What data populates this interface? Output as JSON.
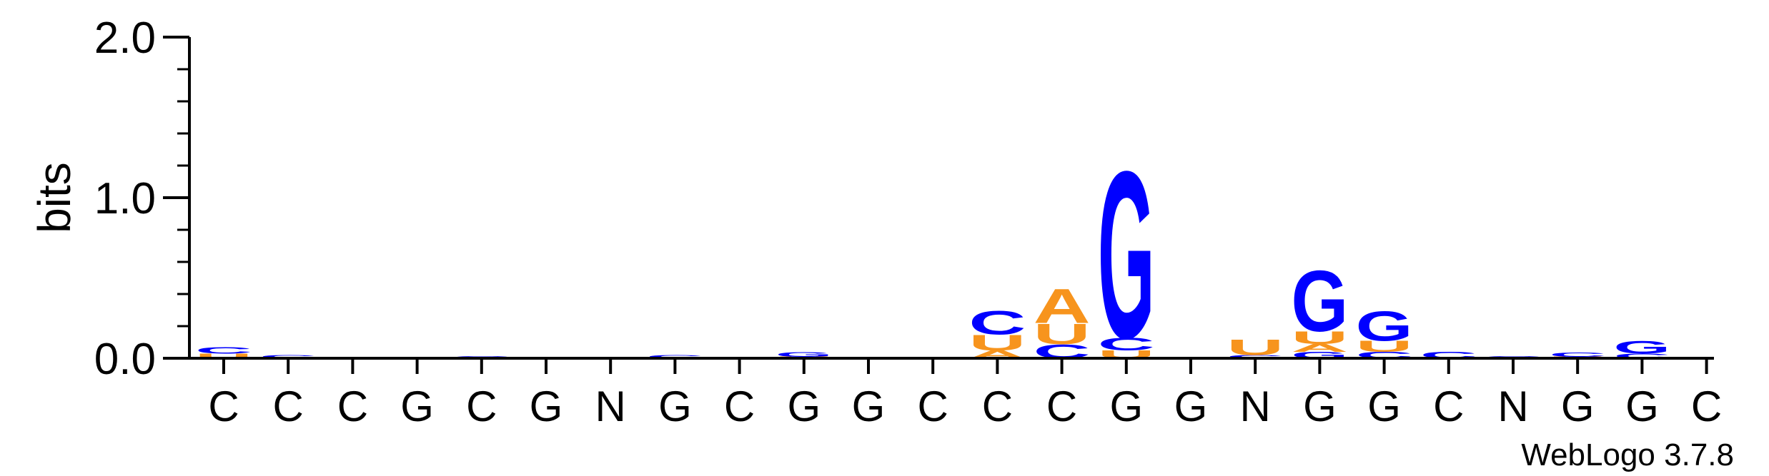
{
  "chart_data": {
    "type": "sequence-logo",
    "ylabel": "bits",
    "ylim": [
      0,
      2.0
    ],
    "yticks": [
      "0.0",
      "1.0",
      "2.0"
    ],
    "x_labels": [
      "C",
      "C",
      "C",
      "G",
      "C",
      "G",
      "N",
      "G",
      "C",
      "G",
      "G",
      "C",
      "C",
      "C",
      "G",
      "G",
      "N",
      "G",
      "G",
      "C",
      "N",
      "G",
      "G",
      "C"
    ],
    "colors": {
      "A": "#f7941d",
      "U": "#f7941d",
      "C": "#0000ff",
      "G": "#0000ff"
    },
    "positions": [
      [
        {
          "letter": "U",
          "bits": 0.03
        },
        {
          "letter": "C",
          "bits": 0.04
        }
      ],
      [
        {
          "letter": "C",
          "bits": 0.02
        }
      ],
      [],
      [],
      [
        {
          "letter": "C",
          "bits": 0.015
        }
      ],
      [],
      [
        {
          "letter": "C",
          "bits": 0.005
        }
      ],
      [
        {
          "letter": "C",
          "bits": 0.02
        }
      ],
      [],
      [
        {
          "letter": "U",
          "bits": 0.01
        },
        {
          "letter": "G",
          "bits": 0.03
        }
      ],
      [],
      [
        {
          "letter": "C",
          "bits": 0.005
        }
      ],
      [
        {
          "letter": "A",
          "bits": 0.05
        },
        {
          "letter": "U",
          "bits": 0.1
        },
        {
          "letter": "C",
          "bits": 0.15
        }
      ],
      [
        {
          "letter": "C",
          "bits": 0.09
        },
        {
          "letter": "U",
          "bits": 0.13
        },
        {
          "letter": "A",
          "bits": 0.22
        }
      ],
      [
        {
          "letter": "U",
          "bits": 0.05
        },
        {
          "letter": "C",
          "bits": 0.08
        },
        {
          "letter": "G",
          "bits": 1.07
        }
      ],
      [],
      [
        {
          "letter": "C",
          "bits": 0.02
        },
        {
          "letter": "U",
          "bits": 0.1
        }
      ],
      [
        {
          "letter": "G",
          "bits": 0.04
        },
        {
          "letter": "A",
          "bits": 0.05
        },
        {
          "letter": "U",
          "bits": 0.08
        },
        {
          "letter": "G",
          "bits": 0.39
        }
      ],
      [
        {
          "letter": "C",
          "bits": 0.04
        },
        {
          "letter": "U",
          "bits": 0.07
        },
        {
          "letter": "G",
          "bits": 0.19
        }
      ],
      [
        {
          "letter": "C",
          "bits": 0.04
        }
      ],
      [
        {
          "letter": "C",
          "bits": 0.015
        }
      ],
      [
        {
          "letter": "U",
          "bits": 0.01
        },
        {
          "letter": "C",
          "bits": 0.025
        }
      ],
      [
        {
          "letter": "C",
          "bits": 0.03
        },
        {
          "letter": "G",
          "bits": 0.08
        }
      ],
      []
    ]
  },
  "credit": "WebLogo 3.7.8"
}
